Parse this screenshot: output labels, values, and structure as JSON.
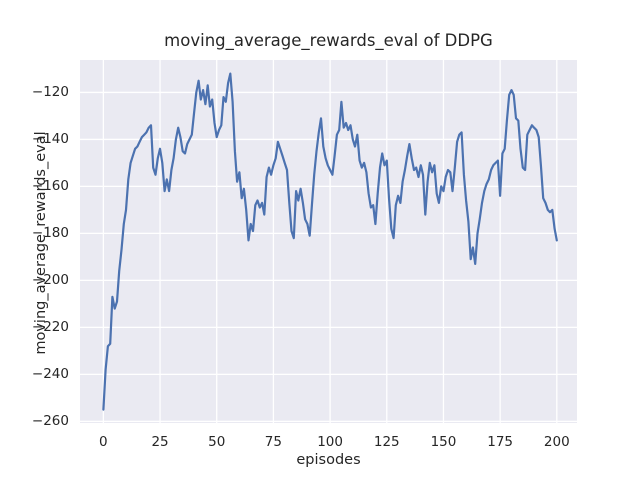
{
  "chart_data": {
    "type": "line",
    "title": "moving_average_rewards_eval of DDPG",
    "xlabel": "episodes",
    "ylabel": "moving_average_rewards_eval",
    "x_start": 0,
    "x_step": 1,
    "values": [
      -255,
      -238,
      -228,
      -227,
      -207,
      -212,
      -209,
      -196,
      -187,
      -176,
      -170,
      -157,
      -150,
      -147,
      -144,
      -143,
      -141,
      -139,
      -138,
      -137,
      -135,
      -134,
      -152,
      -155,
      -148,
      -144,
      -150,
      -162,
      -157,
      -162,
      -153,
      -148,
      -140,
      -135,
      -139,
      -145,
      -146,
      -142,
      -140,
      -138,
      -129,
      -120,
      -115,
      -123,
      -119,
      -125,
      -117,
      -126,
      -123,
      -133,
      -139,
      -136,
      -134,
      -122,
      -124,
      -116,
      -112,
      -124,
      -145,
      -158,
      -154,
      -165,
      -161,
      -170,
      -183,
      -176,
      -179,
      -168,
      -166,
      -169,
      -167,
      -172,
      -156,
      -152,
      -155,
      -151,
      -148,
      -141,
      -144,
      -147,
      -150,
      -153,
      -167,
      -179,
      -182,
      -162,
      -166,
      -161,
      -167,
      -174,
      -176,
      -181,
      -168,
      -155,
      -145,
      -137,
      -131,
      -143,
      -148,
      -151,
      -153,
      -155,
      -147,
      -138,
      -136,
      -124,
      -135,
      -133,
      -136,
      -134,
      -140,
      -143,
      -138,
      -149,
      -152,
      -150,
      -154,
      -163,
      -169,
      -168,
      -176,
      -163,
      -152,
      -146,
      -151,
      -149,
      -165,
      -178,
      -182,
      -168,
      -164,
      -167,
      -158,
      -153,
      -147,
      -142,
      -148,
      -153,
      -152,
      -156,
      -151,
      -155,
      -172,
      -158,
      -150,
      -154,
      -151,
      -163,
      -167,
      -160,
      -162,
      -156,
      -153,
      -154,
      -162,
      -152,
      -141,
      -138,
      -137,
      -155,
      -166,
      -175,
      -191,
      -186,
      -193,
      -180,
      -174,
      -167,
      -162,
      -159,
      -157,
      -153,
      -151,
      -150,
      -149,
      -164,
      -146,
      -144,
      -132,
      -121,
      -119,
      -121,
      -131,
      -132,
      -144,
      -152,
      -153,
      -138,
      -136,
      -134,
      -135,
      -136,
      -139,
      -151,
      -165,
      -167,
      -170,
      -171,
      -170,
      -178,
      -183
    ],
    "xlim": [
      -10.3,
      208.9
    ],
    "ylim": [
      -260.7,
      -106.2
    ],
    "xticks": [
      0,
      25,
      50,
      75,
      100,
      125,
      150,
      175,
      200
    ],
    "yticks": [
      -120,
      -140,
      -160,
      -180,
      -200,
      -220,
      -240,
      -260
    ],
    "xtick_labels": [
      "0",
      "25",
      "50",
      "75",
      "100",
      "125",
      "150",
      "175",
      "200"
    ],
    "ytick_labels": [
      "−120",
      "−140",
      "−160",
      "−180",
      "−200",
      "−220",
      "−240",
      "−260"
    ],
    "grid": true,
    "legend": null,
    "style": {
      "line_color": "#4C72B0",
      "line_width": 2.2,
      "plot_bg": "#EAEAF2",
      "grid_color": "#FFFFFF",
      "grid_width": 1.3,
      "fig_bg": "#FFFFFF",
      "text_color": "#262626"
    }
  }
}
